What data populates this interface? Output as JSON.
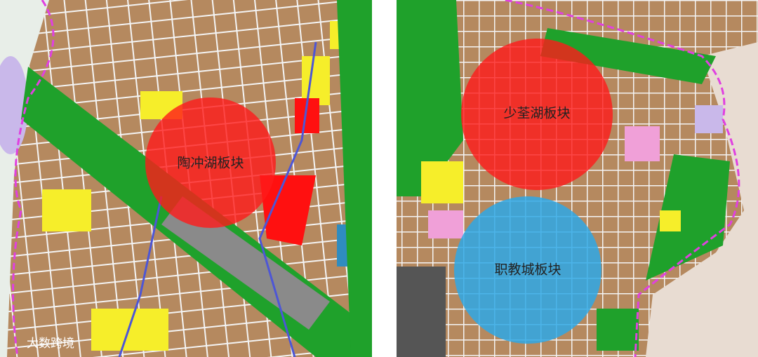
{
  "map": {
    "zones": [
      {
        "label": "陶冲湖板块"
      },
      {
        "label": "少荃湖板块"
      },
      {
        "label": "职教城板块"
      }
    ],
    "watermark": "大数跨境"
  }
}
